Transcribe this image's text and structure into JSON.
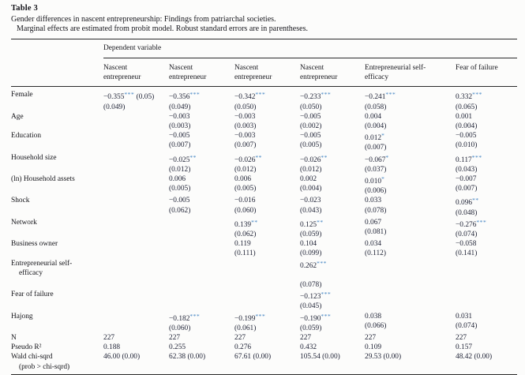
{
  "table": {
    "label": "Table 3",
    "caption": "Gender differences in nascent entrepreneurship: Findings from patriarchal societies.",
    "note": "Marginal effects are estimated from probit model. Robust standard errors are in parentheses.",
    "spanner": "Dependent variable",
    "columns": [
      {
        "lines": [
          "Nascent",
          "entrepreneur"
        ]
      },
      {
        "lines": [
          "Nascent",
          "entrepreneur"
        ]
      },
      {
        "lines": [
          "Nascent",
          "entrepreneur"
        ]
      },
      {
        "lines": [
          "Nascent",
          "entrepreneur"
        ]
      },
      {
        "lines": [
          "Entrepreneurial self-",
          "efficacy"
        ]
      },
      {
        "lines": [
          "Fear of failure"
        ]
      }
    ],
    "rows": [
      {
        "label_lines": [
          "Female"
        ],
        "cells": [
          [
            "−0.355*** (0.05)",
            "(0.049)"
          ],
          [
            "−0.356***",
            "(0.049)"
          ],
          [
            "−0.342***",
            "(0.050)"
          ],
          [
            "−0.233***",
            "(0.050)"
          ],
          [
            "−0.241***",
            "(0.058)"
          ],
          [
            "0.332***",
            "(0.065)"
          ]
        ]
      },
      {
        "label_lines": [
          "Age"
        ],
        "cells": [
          [],
          [
            "−0.003",
            "(0.003)"
          ],
          [
            "−0.003",
            "(0.003)"
          ],
          [
            "−0.005",
            "(0.002)"
          ],
          [
            "0.004",
            "(0.004)"
          ],
          [
            "0.001",
            "(0.004)"
          ]
        ]
      },
      {
        "label_lines": [
          "Education"
        ],
        "cells": [
          [],
          [
            "−0.005",
            "(0.007)"
          ],
          [
            "−0.003",
            "(0.007)"
          ],
          [
            "−0.005",
            "(0.005)"
          ],
          [
            "0.012*",
            "(0.007)"
          ],
          [
            "−0.005",
            "(0.010)"
          ]
        ]
      },
      {
        "label_lines": [
          "Household size"
        ],
        "cells": [
          [],
          [
            "−0.025**",
            "(0.012)"
          ],
          [
            "−0.026**",
            "(0.012)"
          ],
          [
            "−0.026**",
            "(0.012)"
          ],
          [
            "−0.067*",
            "(0.037)"
          ],
          [
            "0.117***",
            "(0.043)"
          ]
        ]
      },
      {
        "label_lines": [
          "(ln) Household assets"
        ],
        "cells": [
          [],
          [
            "0.006",
            "(0.005)"
          ],
          [
            "0.006",
            "(0.005)"
          ],
          [
            "0.002",
            "(0.004)"
          ],
          [
            "0.010*",
            "(0.006)"
          ],
          [
            "−0.007",
            "(0.007)"
          ]
        ]
      },
      {
        "label_lines": [
          "Shock"
        ],
        "cells": [
          [],
          [
            "−0.005",
            "(0.062)"
          ],
          [
            "−0.016",
            "(0.060)"
          ],
          [
            "−0.023",
            "(0.043)"
          ],
          [
            "0.033",
            "(0.078)"
          ],
          [
            "0.096**",
            "(0.048)"
          ]
        ]
      },
      {
        "label_lines": [
          "Network"
        ],
        "cells": [
          [],
          [],
          [
            "0.139**",
            "(0.062)"
          ],
          [
            "0.125**",
            "(0.059)"
          ],
          [
            "0.067",
            "(0.081)"
          ],
          [
            "−0.276***",
            "(0.074)"
          ]
        ]
      },
      {
        "label_lines": [
          "Business owner"
        ],
        "cells": [
          [],
          [],
          [
            "0.119",
            "(0.111)"
          ],
          [
            "0.104",
            "(0.099)"
          ],
          [
            "0.034",
            "(0.112)"
          ],
          [
            "−0.058",
            "(0.141)"
          ]
        ]
      },
      {
        "label_lines": [
          "Entrepreneurial self-",
          "efficacy"
        ],
        "cells": [
          [],
          [],
          [],
          [
            "0.262***",
            "",
            "(0.078)"
          ],
          [],
          []
        ]
      },
      {
        "label_lines": [
          "Fear of failure"
        ],
        "cells": [
          [],
          [],
          [],
          [
            "−0.123***",
            "(0.045)"
          ],
          [],
          []
        ]
      },
      {
        "label_lines": [
          "Hajong"
        ],
        "cells": [
          [],
          [
            "−0.182***",
            "(0.060)"
          ],
          [
            "−0.199***",
            "(0.061)"
          ],
          [
            "−0.190***",
            "(0.059)"
          ],
          [
            "0.038",
            "(0.066)"
          ],
          [
            "0.031",
            "(0.074)"
          ]
        ]
      },
      {
        "label_lines": [
          "N"
        ],
        "cells": [
          [
            "227"
          ],
          [
            "227"
          ],
          [
            "227"
          ],
          [
            "227"
          ],
          [
            "227"
          ],
          [
            "227"
          ]
        ]
      },
      {
        "label_lines": [
          "Pseudo R²"
        ],
        "cells": [
          [
            "0.188"
          ],
          [
            "0.255"
          ],
          [
            "0.276"
          ],
          [
            "0.432"
          ],
          [
            "0.109"
          ],
          [
            "0.157"
          ]
        ]
      },
      {
        "label_lines": [
          "Wald chi-sqrd",
          "(prob > chi-sqrd)"
        ],
        "cells": [
          [
            "46.00 (0.00)"
          ],
          [
            "62.38 (0.00)"
          ],
          [
            "67.61 (0.00)"
          ],
          [
            "105.54 (0.00)"
          ],
          [
            "29.53 (0.00)"
          ],
          [
            "48.42 (0.00)"
          ]
        ]
      }
    ],
    "colors": {
      "star_blue": "#3b7fc0",
      "body_text": "#1d2134",
      "rule": "#2b2b2b",
      "background": "#fcfcfb"
    }
  }
}
